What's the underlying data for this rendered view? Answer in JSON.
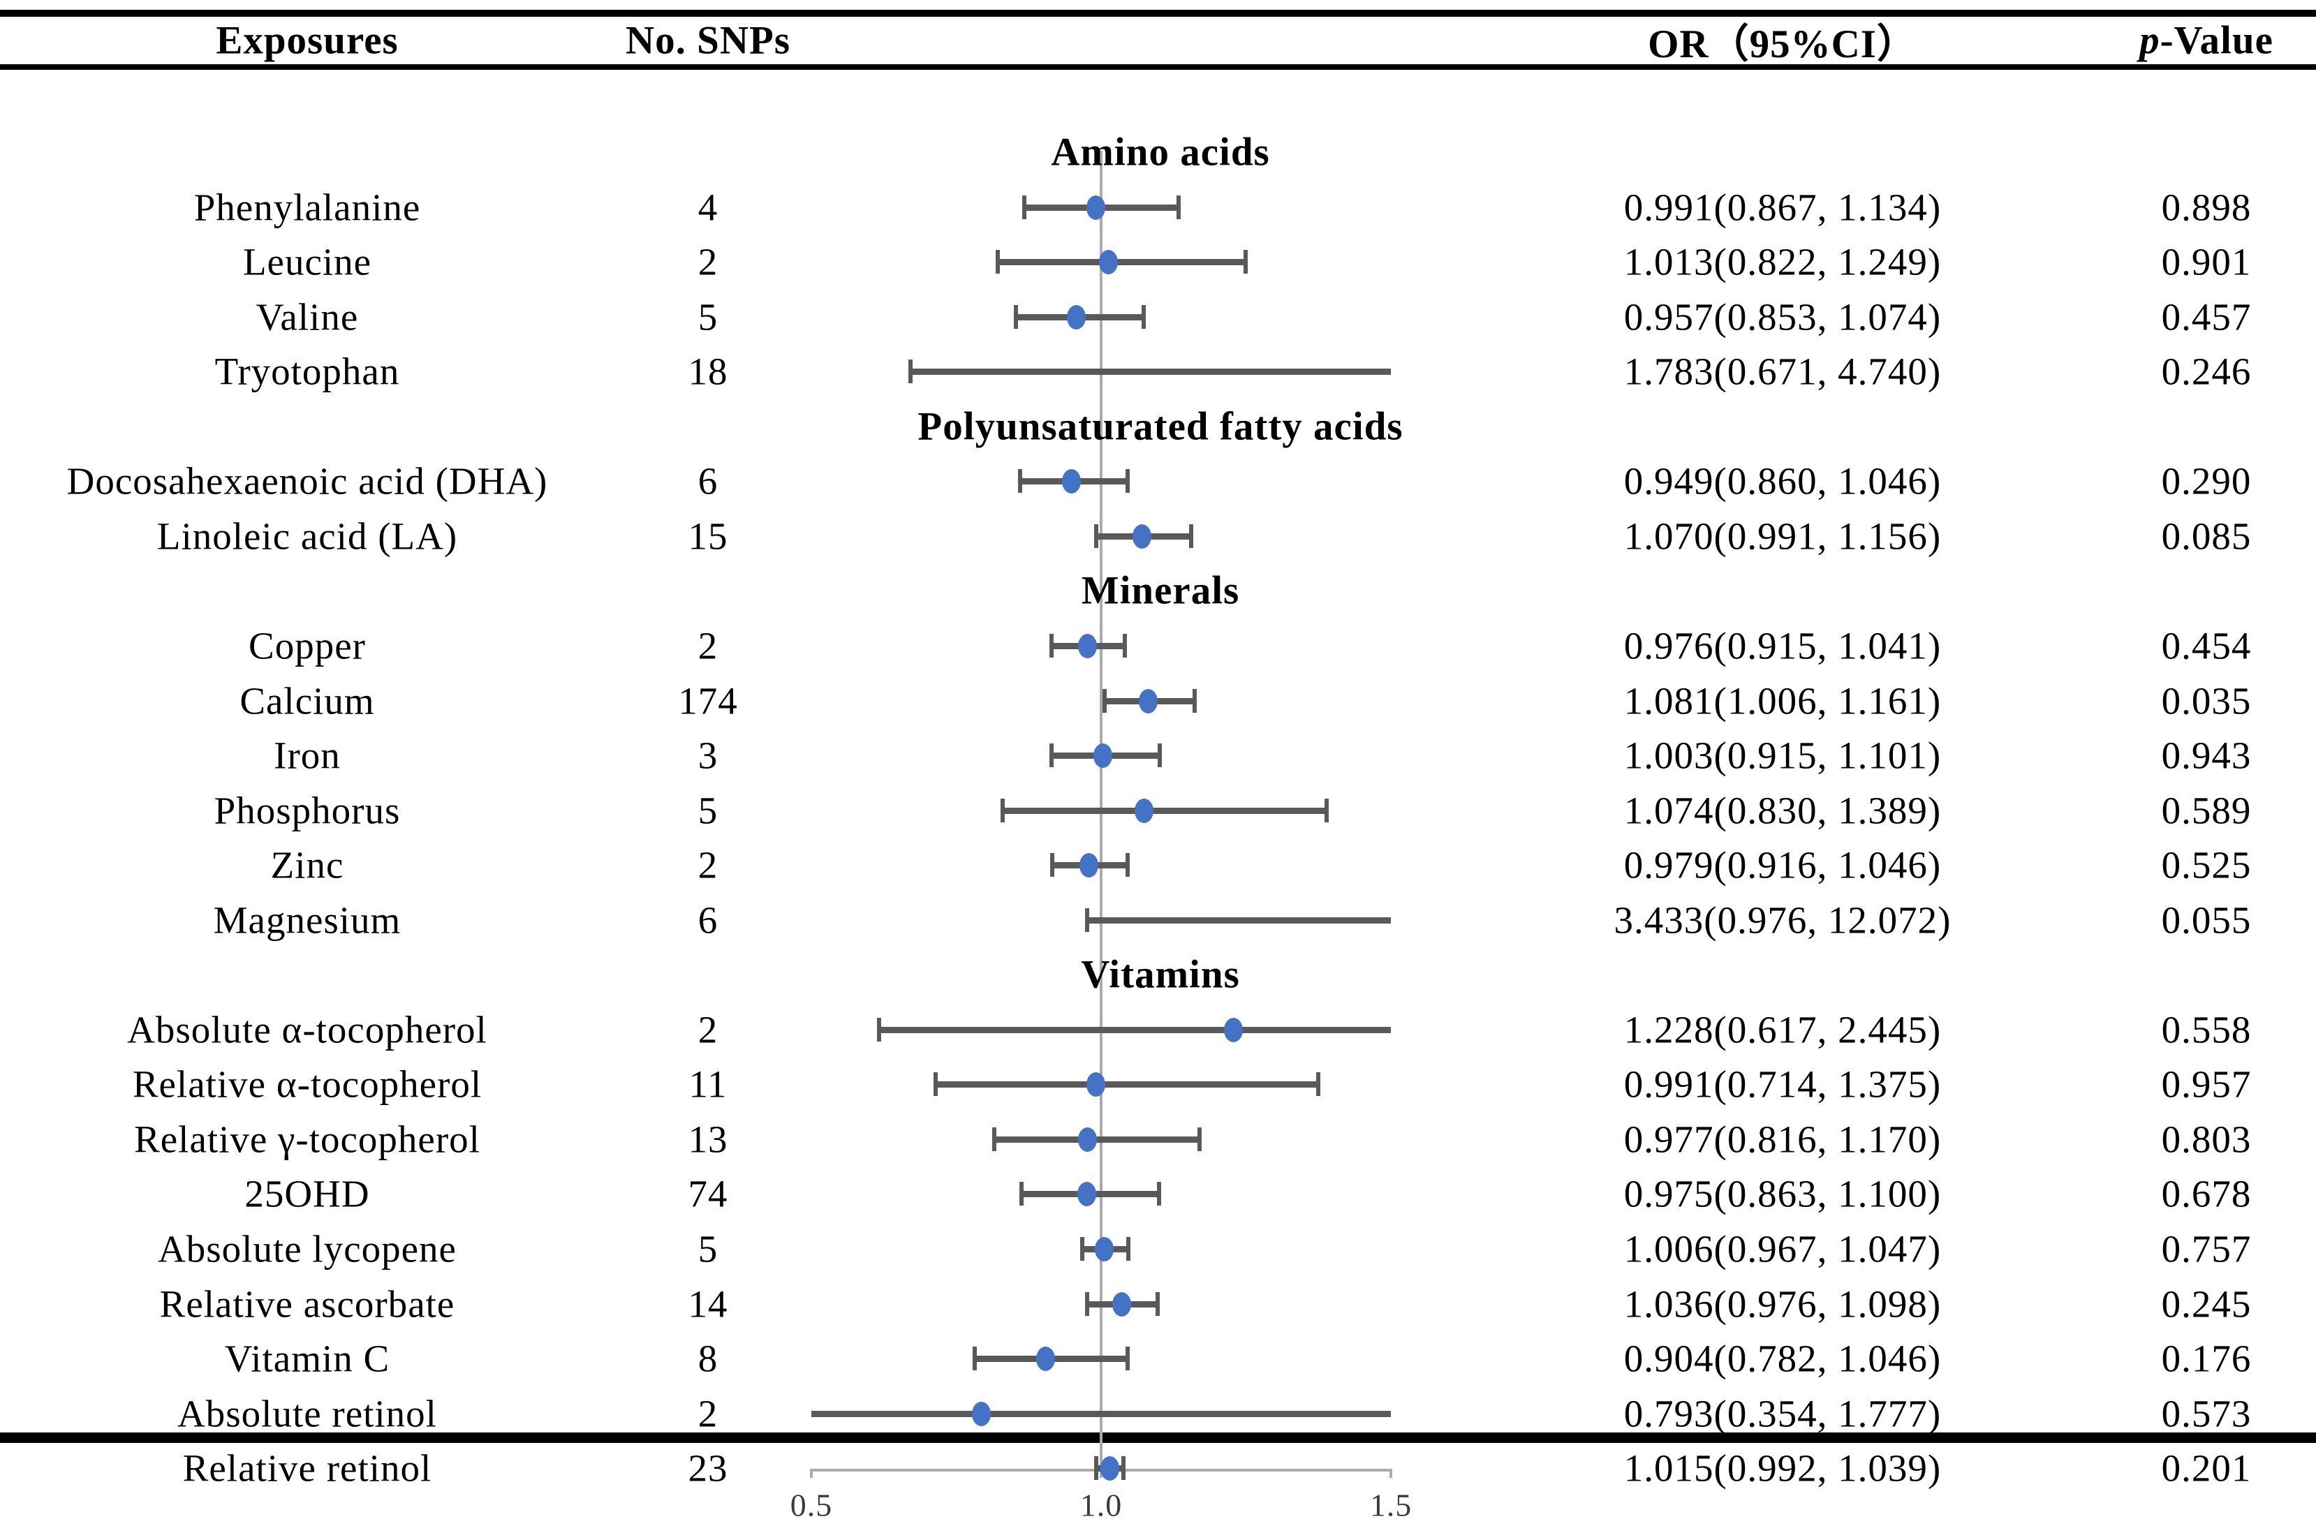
{
  "header": {
    "exposures": "Exposures",
    "snps": "No. SNPs",
    "or_ci": "OR（95%CI）",
    "p_italic": "p",
    "p_rest": "-Value"
  },
  "axis": {
    "ticks": [
      "0.5",
      "1.0",
      "1.5"
    ],
    "tick_values": [
      0.5,
      1.0,
      1.5
    ],
    "range": [
      0.5,
      1.5
    ],
    "reference_value": 1.0
  },
  "colors": {
    "point": "#4472C4",
    "ci_bar": "#595959",
    "reference_line": "#ABABAB",
    "axis_line": "#ABABAB",
    "text": "#000000"
  },
  "chart_data": {
    "type": "forest",
    "columns": [
      "Exposures",
      "No. SNPs",
      "OR（95%CI）",
      "p-Value"
    ],
    "x_range": [
      0.5,
      1.5
    ],
    "reference_line": 1.0,
    "x_ticks": [
      0.5,
      1.0,
      1.5
    ],
    "sections": [
      {
        "label": "Amino acids",
        "rows": [
          {
            "exposure": "Phenylalanine",
            "snps": "4",
            "or": 0.991,
            "lo": 0.867,
            "hi": 1.134,
            "or_ci": "0.991(0.867, 1.134)",
            "p": "0.898"
          },
          {
            "exposure": "Leucine",
            "snps": "2",
            "or": 1.013,
            "lo": 0.822,
            "hi": 1.249,
            "or_ci": "1.013(0.822, 1.249)",
            "p": "0.901"
          },
          {
            "exposure": "Valine",
            "snps": "5",
            "or": 0.957,
            "lo": 0.853,
            "hi": 1.074,
            "or_ci": "0.957(0.853, 1.074)",
            "p": "0.457"
          },
          {
            "exposure": "Tryotophan",
            "snps": "18",
            "or": 1.783,
            "lo": 0.671,
            "hi": 4.74,
            "or_ci": "1.783(0.671, 4.740)",
            "p": "0.246"
          }
        ]
      },
      {
        "label": "Polyunsaturated fatty acids",
        "rows": [
          {
            "exposure": "Docosahexaenoic acid (DHA)",
            "snps": "6",
            "or": 0.949,
            "lo": 0.86,
            "hi": 1.046,
            "or_ci": "0.949(0.860, 1.046)",
            "p": "0.290"
          },
          {
            "exposure": "Linoleic acid (LA)",
            "snps": "15",
            "or": 1.07,
            "lo": 0.991,
            "hi": 1.156,
            "or_ci": "1.070(0.991, 1.156)",
            "p": "0.085"
          }
        ]
      },
      {
        "label": "Minerals",
        "rows": [
          {
            "exposure": "Copper",
            "snps": "2",
            "or": 0.976,
            "lo": 0.915,
            "hi": 1.041,
            "or_ci": "0.976(0.915, 1.041)",
            "p": "0.454"
          },
          {
            "exposure": "Calcium",
            "snps": "174",
            "or": 1.081,
            "lo": 1.006,
            "hi": 1.161,
            "or_ci": "1.081(1.006, 1.161)",
            "p": "0.035"
          },
          {
            "exposure": "Iron",
            "snps": "3",
            "or": 1.003,
            "lo": 0.915,
            "hi": 1.101,
            "or_ci": "1.003(0.915, 1.101)",
            "p": "0.943"
          },
          {
            "exposure": "Phosphorus",
            "snps": "5",
            "or": 1.074,
            "lo": 0.83,
            "hi": 1.389,
            "or_ci": "1.074(0.830, 1.389)",
            "p": "0.589"
          },
          {
            "exposure": "Zinc",
            "snps": "2",
            "or": 0.979,
            "lo": 0.916,
            "hi": 1.046,
            "or_ci": "0.979(0.916, 1.046)",
            "p": "0.525"
          },
          {
            "exposure": "Magnesium",
            "snps": "6",
            "or": 3.433,
            "lo": 0.976,
            "hi": 12.072,
            "or_ci": "3.433(0.976, 12.072)",
            "p": "0.055"
          }
        ]
      },
      {
        "label": "Vitamins",
        "rows": [
          {
            "exposure": "Absolute α-tocopherol",
            "snps": "2",
            "or": 1.228,
            "lo": 0.617,
            "hi": 2.445,
            "or_ci": "1.228(0.617, 2.445)",
            "p": "0.558"
          },
          {
            "exposure": "Relative α-tocopherol",
            "snps": "11",
            "or": 0.991,
            "lo": 0.714,
            "hi": 1.375,
            "or_ci": "0.991(0.714, 1.375)",
            "p": "0.957"
          },
          {
            "exposure": "Relative γ-tocopherol",
            "snps": "13",
            "or": 0.977,
            "lo": 0.816,
            "hi": 1.17,
            "or_ci": "0.977(0.816, 1.170)",
            "p": "0.803"
          },
          {
            "exposure": "25OHD",
            "snps": "74",
            "or": 0.975,
            "lo": 0.863,
            "hi": 1.1,
            "or_ci": "0.975(0.863, 1.100)",
            "p": "0.678"
          },
          {
            "exposure": "Absolute lycopene",
            "snps": "5",
            "or": 1.006,
            "lo": 0.967,
            "hi": 1.047,
            "or_ci": "1.006(0.967, 1.047)",
            "p": "0.757"
          },
          {
            "exposure": "Relative ascorbate",
            "snps": "14",
            "or": 1.036,
            "lo": 0.976,
            "hi": 1.098,
            "or_ci": "1.036(0.976, 1.098)",
            "p": "0.245"
          },
          {
            "exposure": "Vitamin C",
            "snps": "8",
            "or": 0.904,
            "lo": 0.782,
            "hi": 1.046,
            "or_ci": "0.904(0.782, 1.046)",
            "p": "0.176"
          },
          {
            "exposure": "Absolute retinol",
            "snps": "2",
            "or": 0.793,
            "lo": 0.354,
            "hi": 1.777,
            "or_ci": "0.793(0.354, 1.777)",
            "p": "0.573"
          },
          {
            "exposure": "Relative retinol",
            "snps": "23",
            "or": 1.015,
            "lo": 0.992,
            "hi": 1.039,
            "or_ci": "1.015(0.992, 1.039)",
            "p": "0.201"
          }
        ]
      }
    ]
  }
}
